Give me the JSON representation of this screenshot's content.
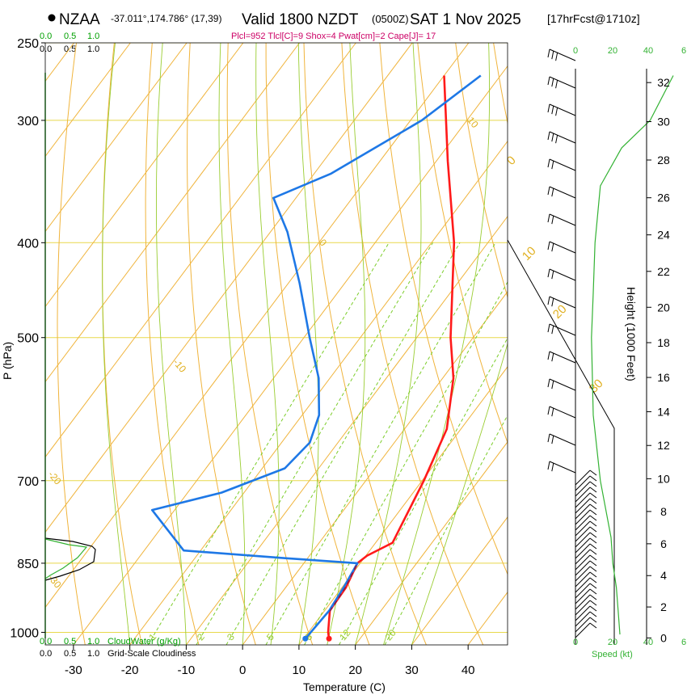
{
  "chart_data": {
    "type": "line",
    "chart_kind": "skew-t log-p sounding",
    "station": "NZAA",
    "location": "-37.011°,174.786° (17,39)",
    "title": "Valid 1800 NZDT",
    "title_utc": "(0500Z)",
    "title_date": "SAT 1 Nov 2025",
    "title_forecast": "[17hrFcst@1710z]",
    "subtitle": "Plcl=952 Tlcl[C]=9 Shox=4 Pwat[cm]=2 Cape[J]= 17",
    "xlabel": "Temperature (C)",
    "ylabel": "P (hPa)",
    "y2label": "Height (1000 Feet)",
    "xlim": [
      -35,
      47
    ],
    "ylim": [
      1030,
      250
    ],
    "x_ticks": [
      -30,
      -20,
      -10,
      0,
      10,
      20,
      30,
      40
    ],
    "y_ticks": [
      250,
      300,
      400,
      500,
      700,
      850,
      1000
    ],
    "height_ticks": [
      0,
      2,
      4,
      6,
      8,
      10,
      12,
      14,
      16,
      18,
      20,
      22,
      24,
      26,
      28,
      30,
      32
    ],
    "isotherm_labels": [
      "10",
      "0",
      "-10",
      "-20",
      "-30"
    ],
    "dry_adiabat_labels": [
      "0",
      "10",
      "20",
      "30"
    ],
    "mixing_ratio_labels": [
      "1",
      "2",
      "3",
      "5",
      "8",
      "12",
      "20"
    ],
    "cloud_scale_top_green": [
      "0.0",
      "0.5",
      "1.0"
    ],
    "cloud_scale_top_black": [
      "0.0",
      "0.5",
      "1.0"
    ],
    "cloud_scale_bottom_green": [
      "0.0",
      "0.5",
      "1.0"
    ],
    "cloud_scale_bottom_black": [
      "0.0",
      "0.5",
      "1.0"
    ],
    "cloudwater_label": "CloudWater (g/Kg)",
    "cloudiness_label": "Grid-Scale Cloudiness",
    "wind_speed_label": "Speed (kt)",
    "wind_speed_ticks_top": [
      "0",
      "20",
      "40",
      "6"
    ],
    "wind_speed_ticks_bottom": [
      "0",
      "20",
      "40",
      "6"
    ],
    "colors": {
      "temperature": "#ff1a1a",
      "dewpoint": "#1e78e6",
      "isobar": "#e8d84a",
      "isotherm": "#f0b43c",
      "dry_adiabat": "#f0b43c",
      "moist_adiabat": "#9acd32",
      "mixing_ratio": "#7ccd2a",
      "cloud_water": "#33b233",
      "wind_speed": "#33b233",
      "parcel": "#8b1a4a",
      "label_teal": "#00a000",
      "subtitle": "#cc0066"
    },
    "series": [
      {
        "name": "Temperature",
        "points": [
          [
            14.5,
            1015
          ],
          [
            13.5,
            1000
          ],
          [
            10.9,
            950
          ],
          [
            10.7,
            900
          ],
          [
            9.5,
            850
          ],
          [
            10.2,
            835
          ],
          [
            13.0,
            810
          ],
          [
            12.3,
            780
          ],
          [
            10.3,
            700
          ],
          [
            7.5,
            620
          ],
          [
            1.9,
            550
          ],
          [
            -4.0,
            500
          ],
          [
            -16.0,
            400
          ],
          [
            -28.0,
            330
          ],
          [
            -40.0,
            270
          ]
        ]
      },
      {
        "name": "Dewpoint",
        "points": [
          [
            10.3,
            1015
          ],
          [
            10.8,
            950
          ],
          [
            10.3,
            900
          ],
          [
            9.5,
            850
          ],
          [
            -4.0,
            840
          ],
          [
            -23.0,
            825
          ],
          [
            -34.0,
            750
          ],
          [
            -24.0,
            720
          ],
          [
            -16.0,
            680
          ],
          [
            -15.0,
            640
          ],
          [
            -17.0,
            600
          ],
          [
            -22.0,
            550
          ],
          [
            -29.0,
            500
          ],
          [
            -38.0,
            440
          ],
          [
            -47.0,
            390
          ],
          [
            -54.0,
            360
          ],
          [
            -47.0,
            340
          ],
          [
            -38.0,
            300
          ],
          [
            -33.5,
            270
          ]
        ]
      },
      {
        "name": "Parcel",
        "points": [
          [
            11.0,
            952
          ],
          [
            10.6,
            900
          ],
          [
            9.5,
            850
          ]
        ]
      },
      {
        "name": "Wind speed (kt)",
        "points": [
          [
            25,
            1005
          ],
          [
            24,
            950
          ],
          [
            23,
            900
          ],
          [
            21,
            850
          ],
          [
            20,
            800
          ],
          [
            14,
            700
          ],
          [
            10,
            600
          ],
          [
            9,
            500
          ],
          [
            10,
            450
          ],
          [
            11,
            400
          ],
          [
            14,
            350
          ],
          [
            26,
            320
          ],
          [
            42,
            300
          ],
          [
            55,
            270
          ]
        ]
      }
    ]
  }
}
